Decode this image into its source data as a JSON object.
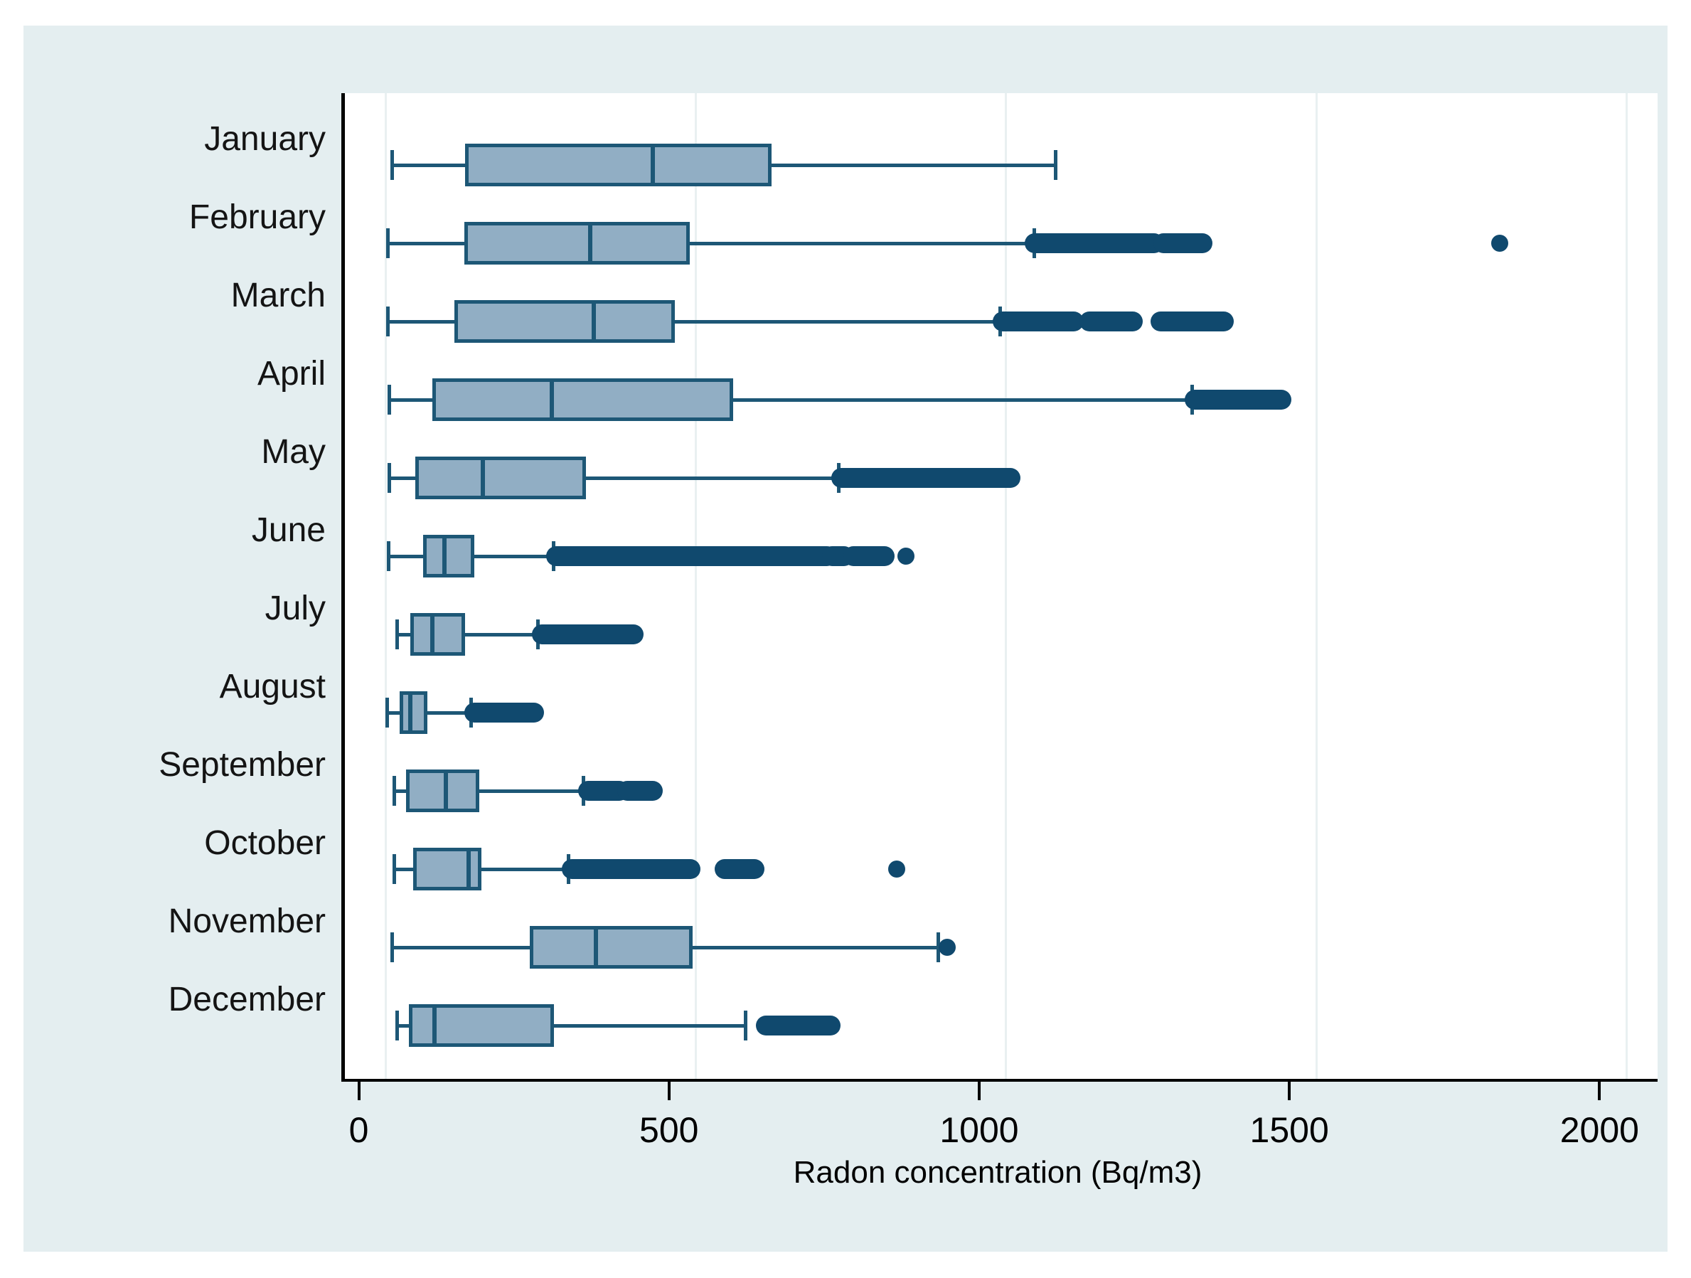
{
  "figure": {
    "xlabel": "Radon concentration (Bq/m3)"
  },
  "colors": {
    "page_background": "#ffffff",
    "panel_background": "#e4eef0",
    "plot_background": "#ffffff",
    "gridline": "#e9f0f1",
    "axis_line": "#000000",
    "box_fill": "#91aec4",
    "box_stroke": "#1d5776",
    "outlier": "#10496e",
    "text": "#141414"
  },
  "chart_data": {
    "type": "box",
    "orientation": "horizontal",
    "title": "",
    "xlabel": "Radon concentration (Bq/m3)",
    "ylabel": "",
    "grid": true,
    "legend": false,
    "x_ticks": [
      0,
      500,
      1000,
      1500,
      2000
    ],
    "axis": {
      "min": -66,
      "max": 2050,
      "unit": "Bq/m3"
    },
    "categories": [
      "January",
      "February",
      "March",
      "April",
      "May",
      "June",
      "July",
      "August",
      "September",
      "October",
      "November",
      "December"
    ],
    "boxes": [
      {
        "month": "January",
        "whisker_low": 10,
        "q1": 128,
        "median": 430,
        "q3": 622,
        "whisker_high": 1080,
        "outlier_ranges": [],
        "outliers": []
      },
      {
        "month": "February",
        "whisker_low": 3,
        "q1": 127,
        "median": 330,
        "q3": 490,
        "whisker_high": 1045,
        "outlier_ranges": [
          [
            1045,
            1240
          ],
          [
            1252,
            1318
          ]
        ],
        "outliers": [
          1795
        ]
      },
      {
        "month": "March",
        "whisker_low": 3,
        "q1": 110,
        "median": 335,
        "q3": 466,
        "whisker_high": 990,
        "outlier_ranges": [
          [
            993,
            1110
          ],
          [
            1133,
            1205
          ],
          [
            1248,
            1352
          ]
        ],
        "outliers": []
      },
      {
        "month": "April",
        "whisker_low": 6,
        "q1": 75,
        "median": 268,
        "q3": 560,
        "whisker_high": 1300,
        "outlier_ranges": [
          [
            1303,
            1445
          ]
        ],
        "outliers": []
      },
      {
        "month": "May",
        "whisker_low": 6,
        "q1": 48,
        "median": 156,
        "q3": 323,
        "whisker_high": 730,
        "outlier_ranges": [
          [
            733,
            1008
          ]
        ],
        "outliers": []
      },
      {
        "month": "June",
        "whisker_low": 5,
        "q1": 60,
        "median": 94,
        "q3": 143,
        "whisker_high": 270,
        "outlier_ranges": [
          [
            273,
            712
          ],
          [
            718,
            740
          ],
          [
            752,
            805
          ]
        ],
        "outliers": [
          838
        ]
      },
      {
        "month": "July",
        "whisker_low": 18,
        "q1": 39,
        "median": 75,
        "q3": 128,
        "whisker_high": 245,
        "outlier_ranges": [
          [
            250,
            400
          ]
        ],
        "outliers": []
      },
      {
        "month": "August",
        "whisker_low": 2,
        "q1": 22,
        "median": 39,
        "q3": 67,
        "whisker_high": 138,
        "outlier_ranges": [
          [
            142,
            240
          ]
        ],
        "outliers": []
      },
      {
        "month": "September",
        "whisker_low": 14,
        "q1": 33,
        "median": 97,
        "q3": 151,
        "whisker_high": 318,
        "outlier_ranges": [
          [
            325,
            378
          ],
          [
            388,
            432
          ]
        ],
        "outliers": []
      },
      {
        "month": "October",
        "whisker_low": 14,
        "q1": 44,
        "median": 133,
        "q3": 154,
        "whisker_high": 295,
        "outlier_ranges": [
          [
            298,
            492
          ],
          [
            545,
            595
          ]
        ],
        "outliers": [
          823
        ]
      },
      {
        "month": "November",
        "whisker_low": 10,
        "q1": 232,
        "median": 339,
        "q3": 494,
        "whisker_high": 890,
        "outlier_ranges": [],
        "outliers": [
          905
        ]
      },
      {
        "month": "December",
        "whisker_low": 18,
        "q1": 37,
        "median": 78,
        "q3": 271,
        "whisker_high": 580,
        "outlier_ranges": [
          [
            612,
            718
          ]
        ],
        "outliers": []
      }
    ]
  }
}
